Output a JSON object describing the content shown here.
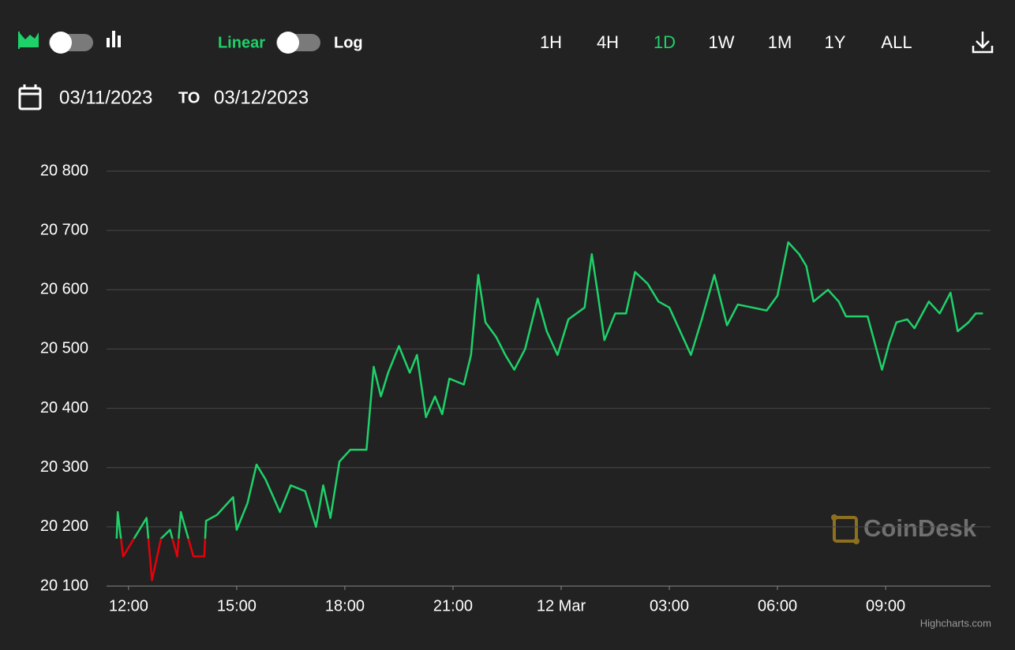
{
  "toolbar": {
    "scale_linear": "Linear",
    "scale_log": "Log",
    "ranges": [
      "1H",
      "4H",
      "1D",
      "1W",
      "1M",
      "1Y",
      "ALL"
    ],
    "active_range": 2
  },
  "date_range": {
    "from": "03/11/2023",
    "separator": "TO",
    "to": "03/12/2023"
  },
  "watermark": "CoinDesk",
  "credits": "Highcharts.com",
  "chart_data": {
    "type": "line",
    "color": "#1ed26a",
    "negative_color": "#e8000b",
    "threshold": 20180,
    "x": [
      11.67,
      11.7,
      11.85,
      12.15,
      12.5,
      12.65,
      12.9,
      13.15,
      13.35,
      13.45,
      13.8,
      14.1,
      14.15,
      14.45,
      14.9,
      15.0,
      15.3,
      15.55,
      15.8,
      16.2,
      16.5,
      16.9,
      17.2,
      17.4,
      17.6,
      17.85,
      18.15,
      18.6,
      18.8,
      19.0,
      19.2,
      19.5,
      19.8,
      20.0,
      20.25,
      20.5,
      20.7,
      20.9,
      21.3,
      21.5,
      21.7,
      21.9,
      22.2,
      22.45,
      22.7,
      23.0,
      23.35,
      23.6,
      23.9,
      24.2,
      24.65,
      24.85,
      25.0,
      25.2,
      25.5,
      25.8,
      26.05,
      26.4,
      26.7,
      27.0,
      27.3,
      27.6,
      27.9,
      28.25,
      28.6,
      28.9,
      29.3,
      29.7,
      30.0,
      30.3,
      30.6,
      30.8,
      31.0,
      31.4,
      31.7,
      31.9,
      32.2,
      32.5,
      32.9,
      33.1,
      33.3,
      33.6,
      33.8,
      34.2,
      34.5,
      34.8,
      35.0,
      35.3,
      35.5,
      35.7
    ],
    "values": [
      20180,
      20225,
      20150,
      20180,
      20215,
      20110,
      20180,
      20195,
      20150,
      20225,
      20150,
      20150,
      20210,
      20220,
      20250,
      20195,
      20240,
      20305,
      20280,
      20225,
      20270,
      20260,
      20200,
      20270,
      20215,
      20310,
      20330,
      20330,
      20470,
      20420,
      20460,
      20505,
      20460,
      20490,
      20385,
      20420,
      20390,
      20450,
      20440,
      20490,
      20625,
      20545,
      20520,
      20490,
      20465,
      20500,
      20585,
      20530,
      20490,
      20550,
      20570,
      20660,
      20600,
      20515,
      20560,
      20560,
      20630,
      20610,
      20580,
      20570,
      20530,
      20490,
      20550,
      20625,
      20540,
      20575,
      20570,
      20565,
      20590,
      20680,
      20660,
      20640,
      20580,
      20600,
      20580,
      20555,
      20555,
      20555,
      20465,
      20510,
      20545,
      20550,
      20535,
      20580,
      20560,
      20595,
      20530,
      20545,
      20560,
      20560
    ],
    "xlim": [
      11.39,
      35.91
    ],
    "xticks": [
      {
        "value": 12,
        "label": "12:00"
      },
      {
        "value": 15,
        "label": "15:00"
      },
      {
        "value": 18,
        "label": "18:00"
      },
      {
        "value": 21,
        "label": "21:00"
      },
      {
        "value": 24,
        "label": "12 Mar"
      },
      {
        "value": 27,
        "label": "03:00"
      },
      {
        "value": 30,
        "label": "06:00"
      },
      {
        "value": 33,
        "label": "09:00"
      }
    ],
    "ylim": [
      20100,
      20800
    ],
    "yticks": [
      {
        "value": 20100,
        "label": "20 100"
      },
      {
        "value": 20200,
        "label": "20 200"
      },
      {
        "value": 20300,
        "label": "20 300"
      },
      {
        "value": 20400,
        "label": "20 400"
      },
      {
        "value": 20500,
        "label": "20 500"
      },
      {
        "value": 20600,
        "label": "20 600"
      },
      {
        "value": 20700,
        "label": "20 700"
      },
      {
        "value": 20800,
        "label": "20 800"
      }
    ],
    "grid": true
  }
}
